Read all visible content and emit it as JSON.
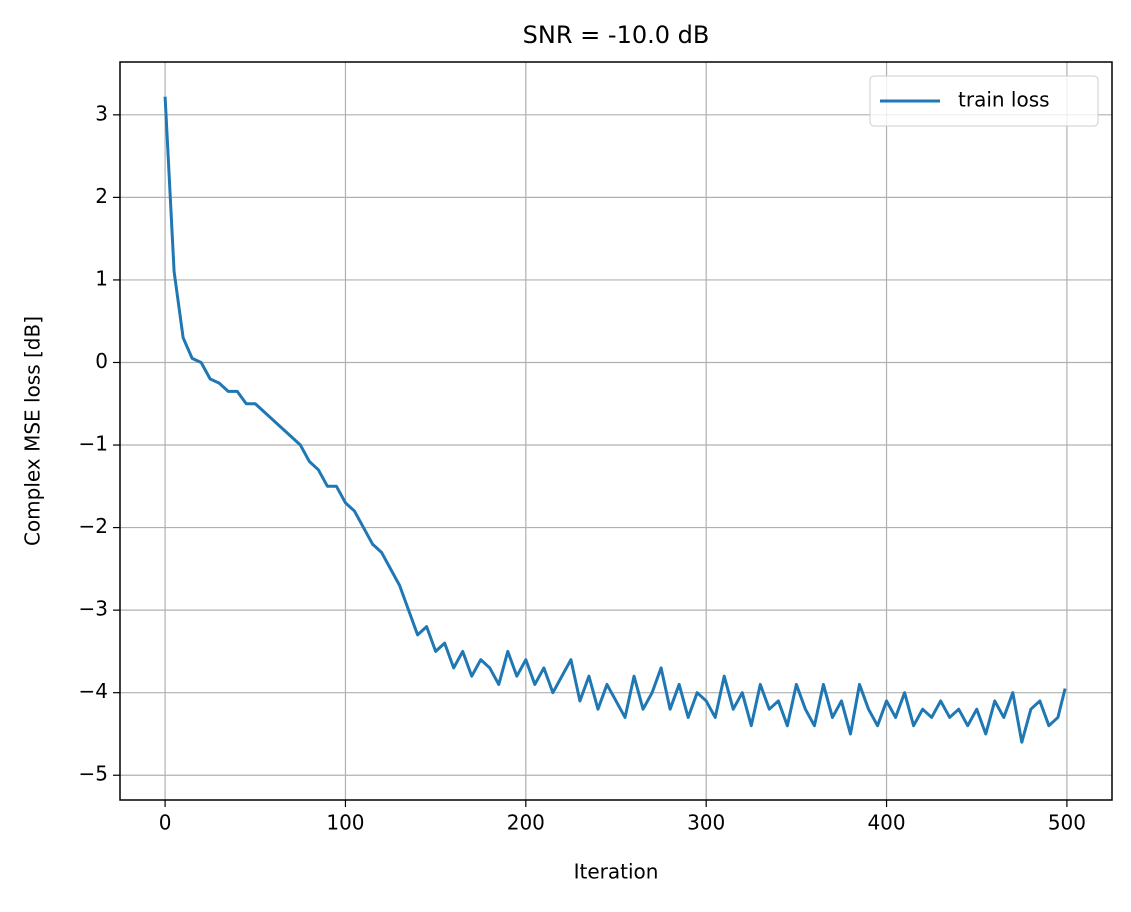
{
  "chart_data": {
    "type": "line",
    "title": "SNR = -10.0 dB",
    "xlabel": "Iteration",
    "ylabel": "Complex MSE loss [dB]",
    "x": [
      0,
      5,
      10,
      15,
      20,
      25,
      30,
      35,
      40,
      45,
      50,
      55,
      60,
      65,
      70,
      75,
      80,
      85,
      90,
      95,
      100,
      105,
      110,
      115,
      120,
      125,
      130,
      135,
      140,
      145,
      150,
      155,
      160,
      165,
      170,
      175,
      180,
      185,
      190,
      195,
      200,
      205,
      210,
      215,
      220,
      225,
      230,
      235,
      240,
      245,
      250,
      255,
      260,
      265,
      270,
      275,
      280,
      285,
      290,
      295,
      300,
      305,
      310,
      315,
      320,
      325,
      330,
      335,
      340,
      345,
      350,
      355,
      360,
      365,
      370,
      375,
      380,
      385,
      390,
      395,
      400,
      405,
      410,
      415,
      420,
      425,
      430,
      435,
      440,
      445,
      450,
      455,
      460,
      465,
      470,
      475,
      480,
      485,
      490,
      495,
      499
    ],
    "series": [
      {
        "name": "train loss",
        "color": "#1f77b4",
        "values": [
          3.22,
          1.1,
          0.3,
          0.05,
          0.0,
          -0.2,
          -0.25,
          -0.35,
          -0.35,
          -0.5,
          -0.5,
          -0.6,
          -0.7,
          -0.8,
          -0.9,
          -1.0,
          -1.2,
          -1.3,
          -1.5,
          -1.5,
          -1.7,
          -1.8,
          -2.0,
          -2.2,
          -2.3,
          -2.5,
          -2.7,
          -3.0,
          -3.3,
          -3.2,
          -3.5,
          -3.4,
          -3.7,
          -3.5,
          -3.8,
          -3.6,
          -3.7,
          -3.9,
          -3.5,
          -3.8,
          -3.6,
          -3.9,
          -3.7,
          -4.0,
          -3.8,
          -3.6,
          -4.1,
          -3.8,
          -4.2,
          -3.9,
          -4.1,
          -4.3,
          -3.8,
          -4.2,
          -4.0,
          -3.7,
          -4.2,
          -3.9,
          -4.3,
          -4.0,
          -4.1,
          -4.3,
          -3.8,
          -4.2,
          -4.0,
          -4.4,
          -3.9,
          -4.2,
          -4.1,
          -4.4,
          -3.9,
          -4.2,
          -4.4,
          -3.9,
          -4.3,
          -4.1,
          -4.5,
          -3.9,
          -4.2,
          -4.4,
          -4.1,
          -4.3,
          -4.0,
          -4.4,
          -4.2,
          -4.3,
          -4.1,
          -4.3,
          -4.2,
          -4.4,
          -4.2,
          -4.5,
          -4.1,
          -4.3,
          -4.0,
          -4.6,
          -4.2,
          -4.1,
          -4.4,
          -4.3,
          -3.95
        ]
      }
    ],
    "xlim": [
      -25,
      525
    ],
    "xticks": [
      0,
      100,
      200,
      300,
      400,
      500
    ],
    "ylim": [
      -5.3,
      3.64
    ],
    "yticks": [
      {
        "value": -5,
        "label": "−5"
      },
      {
        "value": -4,
        "label": "−4"
      },
      {
        "value": -3,
        "label": "−3"
      },
      {
        "value": -2,
        "label": "−2"
      },
      {
        "value": -1,
        "label": "−1"
      },
      0,
      1,
      2,
      3
    ],
    "grid": true,
    "legend": "upper right"
  }
}
